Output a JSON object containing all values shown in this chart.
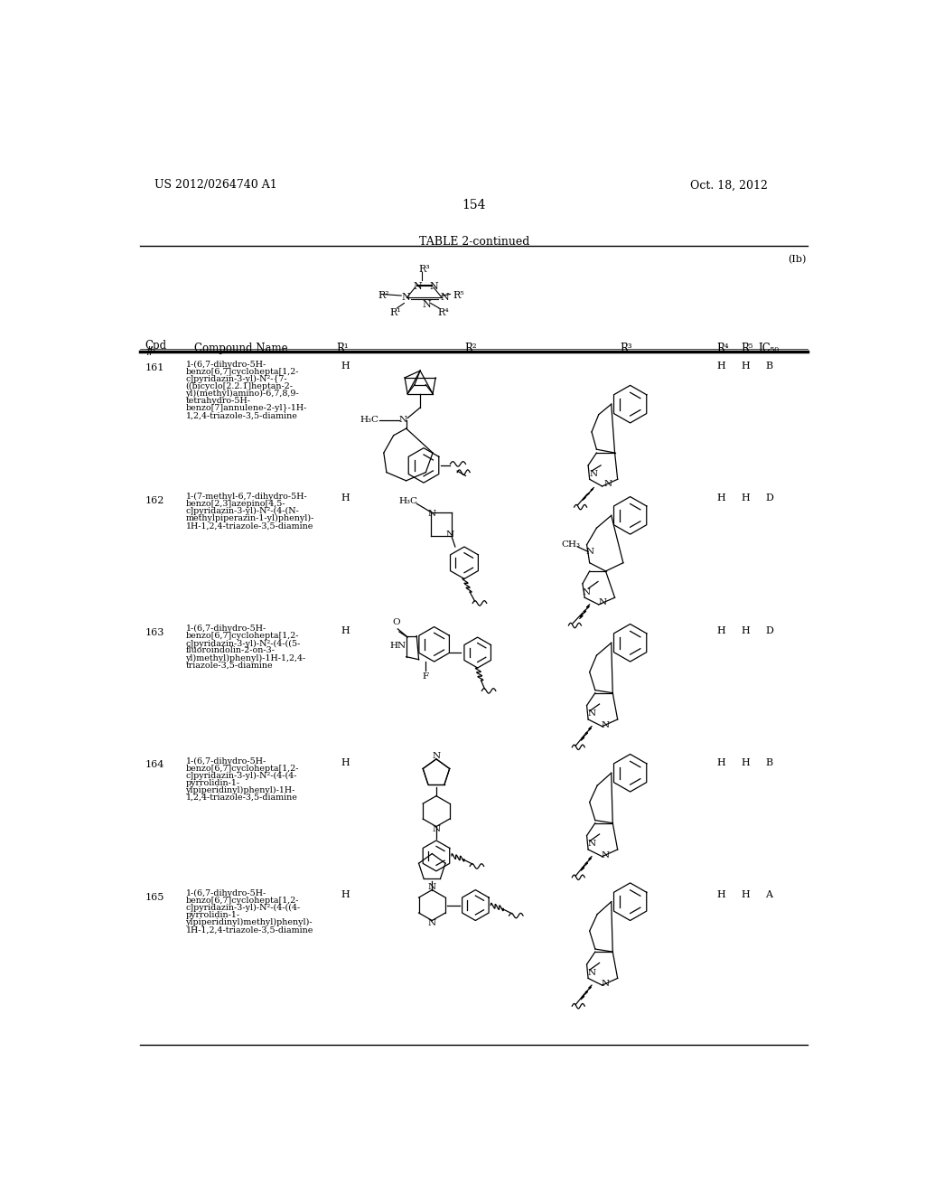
{
  "page_number": "154",
  "patent_left": "US 2012/0264740 A1",
  "patent_right": "Oct. 18, 2012",
  "table_title": "TABLE 2-continued",
  "formula_label": "(Ib)",
  "bg_color": "#ffffff",
  "text_color": "#000000",
  "line_color": "#000000"
}
